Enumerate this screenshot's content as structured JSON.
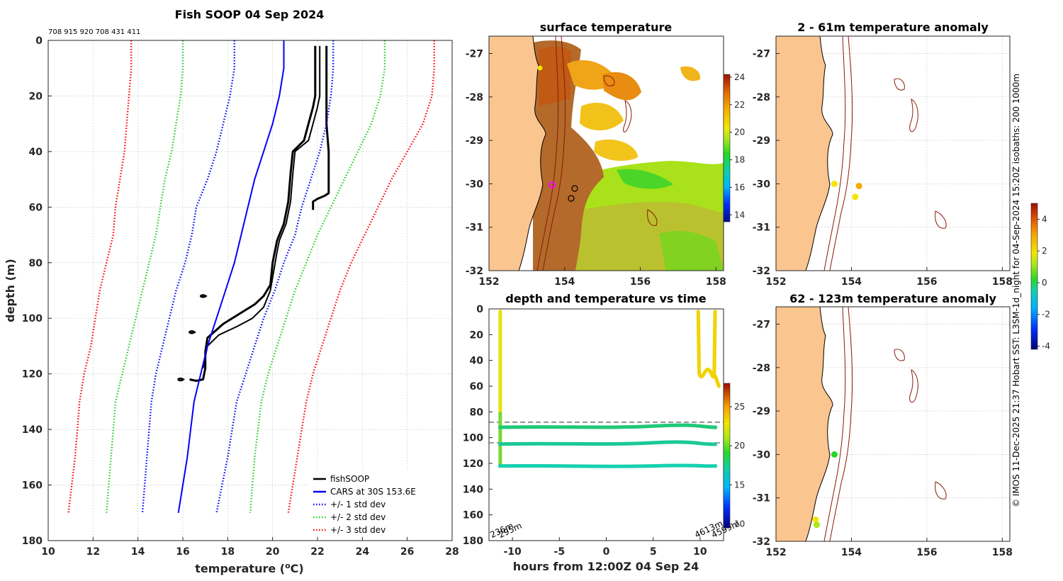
{
  "figure": {
    "side_credit": "© IMOS 11-Dec-2025 21:37 Hobart SST: L3SM-1d_night for 04-Sep-2024 15:20Z isobaths: 200  1000m"
  },
  "chart_data": [
    {
      "id": "profile",
      "type": "line",
      "title": "Fish SOOP 04 Sep 2024",
      "subtitle": "708 915 920 708 431 411",
      "xlabel": "temperature (",
      "xlabel_sup": "o",
      "xlabel_end": "C)",
      "ylabel": "depth (m)",
      "xlim": [
        10,
        28
      ],
      "ylim": [
        0,
        180
      ],
      "yreversed": true,
      "xticks": [
        10,
        12,
        14,
        16,
        18,
        20,
        22,
        24,
        26,
        28
      ],
      "yticks": [
        0,
        20,
        40,
        60,
        80,
        100,
        120,
        140,
        160,
        180
      ],
      "legend_position": "bottom-right",
      "series": [
        {
          "name": "fishSOOP",
          "color": "#000000",
          "style": "solid",
          "width": 3,
          "x": [
            21.9,
            21.9,
            21.8,
            21.6,
            21.4,
            20.9,
            20.8,
            20.7,
            20.5,
            20.2,
            20.1,
            20.0,
            19.9,
            19.6,
            19.2,
            18.6,
            17.8,
            17.1,
            17.0,
            17.0,
            16.9,
            16.6,
            16.3
          ],
          "y": [
            2,
            20,
            24,
            30,
            36,
            40,
            48,
            58,
            66,
            72,
            76,
            80,
            88,
            92,
            95,
            98,
            102,
            107,
            112,
            118,
            122,
            122.5,
            122
          ]
        },
        {
          "name": "fishSOOP",
          "color": "#000000",
          "style": "solid",
          "width": 2,
          "x": [
            22.1,
            22.1,
            22.0,
            21.8,
            21.6,
            21.0,
            20.9,
            20.8,
            20.6,
            20.3,
            20.2,
            19.9,
            19.6,
            19.1,
            18.4,
            17.6,
            17.1,
            16.9
          ],
          "y": [
            2,
            20,
            24,
            30,
            36,
            40,
            48,
            58,
            66,
            72,
            76,
            90,
            96,
            100,
            103,
            106,
            110,
            118
          ]
        },
        {
          "name": "fishSOOP",
          "color": "#000000",
          "style": "solid",
          "width": 3,
          "x": [
            22.4,
            22.4,
            22.4,
            22.5,
            22.5,
            22.5,
            22.3,
            22.0,
            21.8,
            21.8
          ],
          "y": [
            2,
            20,
            30,
            40,
            50,
            55,
            56,
            57,
            58,
            61
          ]
        },
        {
          "name": "CARS at 30S 153.6E",
          "color": "#0000ff",
          "style": "solid",
          "width": 2,
          "x": [
            20.5,
            20.5,
            20.3,
            20.0,
            19.6,
            19.2,
            18.9,
            18.6,
            18.3,
            17.9,
            17.5,
            17.1,
            16.8,
            16.5,
            16.2,
            15.8
          ],
          "y": [
            0,
            10,
            20,
            30,
            40,
            50,
            60,
            70,
            80,
            90,
            100,
            110,
            120,
            130,
            150,
            170
          ]
        },
        {
          "name": "+/- 1 std dev",
          "color": "#0000ff",
          "style": "dotted",
          "width": 2,
          "x": [
            22.7,
            22.7,
            22.6,
            22.4,
            22.1,
            21.7,
            21.3,
            21.0,
            20.5,
            20.1,
            19.6,
            19.2,
            18.8,
            18.4,
            18.0,
            17.5
          ],
          "y": [
            0,
            10,
            20,
            30,
            40,
            50,
            60,
            70,
            80,
            90,
            100,
            110,
            120,
            130,
            150,
            170
          ]
        },
        {
          "name": "+/- 1 std dev",
          "color": "#0000ff",
          "style": "dotted",
          "width": 2,
          "x": [
            18.3,
            18.3,
            18.1,
            17.8,
            17.5,
            17.1,
            16.6,
            16.4,
            16.1,
            15.7,
            15.4,
            15.1,
            14.8,
            14.6,
            14.4,
            14.2
          ],
          "y": [
            0,
            10,
            20,
            30,
            40,
            50,
            60,
            70,
            80,
            90,
            100,
            110,
            120,
            130,
            150,
            170
          ]
        },
        {
          "name": "+/- 2 std dev",
          "color": "#22cc22",
          "style": "dotted",
          "width": 2,
          "x": [
            25.0,
            25.0,
            24.8,
            24.4,
            23.8,
            23.2,
            22.6,
            22.0,
            21.5,
            21.0,
            20.6,
            20.2,
            19.8,
            19.5,
            19.2,
            19.0
          ],
          "y": [
            0,
            10,
            20,
            30,
            40,
            50,
            60,
            70,
            80,
            90,
            100,
            110,
            120,
            130,
            150,
            170
          ]
        },
        {
          "name": "+/- 2 std dev",
          "color": "#22cc22",
          "style": "dotted",
          "width": 2,
          "x": [
            16.0,
            16.0,
            15.9,
            15.7,
            15.5,
            15.2,
            15.0,
            14.8,
            14.5,
            14.2,
            13.9,
            13.6,
            13.3,
            13.0,
            12.8,
            12.6
          ],
          "y": [
            0,
            10,
            20,
            30,
            40,
            50,
            60,
            70,
            80,
            90,
            100,
            110,
            120,
            130,
            150,
            170
          ]
        },
        {
          "name": "+/- 3 std dev",
          "color": "#ff0000",
          "style": "dotted",
          "width": 2,
          "x": [
            27.2,
            27.2,
            27.1,
            26.7,
            26.0,
            25.3,
            24.7,
            24.1,
            23.5,
            23.0,
            22.6,
            22.2,
            21.8,
            21.5,
            21.1,
            20.7
          ],
          "y": [
            0,
            10,
            20,
            30,
            40,
            50,
            60,
            70,
            80,
            90,
            100,
            110,
            120,
            130,
            150,
            170
          ]
        },
        {
          "name": "+/- 3 std dev",
          "color": "#ff0000",
          "style": "dotted",
          "width": 2,
          "x": [
            13.7,
            13.7,
            13.6,
            13.5,
            13.4,
            13.2,
            13.0,
            12.9,
            12.6,
            12.3,
            12.1,
            11.9,
            11.6,
            11.4,
            11.2,
            10.9
          ],
          "y": [
            0,
            10,
            20,
            30,
            40,
            50,
            60,
            70,
            80,
            90,
            100,
            110,
            120,
            130,
            150,
            170
          ]
        }
      ],
      "legend": [
        {
          "label": "fishSOOP",
          "color": "#000000",
          "style": "solid"
        },
        {
          "label": "CARS at 30S 153.6E",
          "color": "#0000ff",
          "style": "solid"
        },
        {
          "label": "+/- 1 std dev",
          "color": "#0000ff",
          "style": "dotted"
        },
        {
          "label": "+/- 2 std dev",
          "color": "#22cc22",
          "style": "dotted"
        },
        {
          "label": "+/- 3 std dev",
          "color": "#ff0000",
          "style": "dotted"
        }
      ]
    },
    {
      "id": "sst_map",
      "type": "heatmap",
      "title": "surface temperature",
      "xlim": [
        152,
        158.2
      ],
      "ylim": [
        -32,
        -26.6
      ],
      "xticks": [
        152,
        154,
        156,
        158
      ],
      "yticks": [
        -27,
        -28,
        -29,
        -30,
        -31,
        -32
      ],
      "colorbar": {
        "min": 13.5,
        "max": 24.2,
        "ticks": [
          14,
          16,
          18,
          20,
          22,
          24
        ]
      },
      "markers": [
        {
          "lon": 153.6,
          "lat": -30.0,
          "type": "magenta-circle"
        },
        {
          "lon": 154.2,
          "lat": -30.05,
          "type": "black-circle"
        },
        {
          "lon": 154.05,
          "lat": -30.3,
          "type": "black-circle"
        }
      ]
    },
    {
      "id": "anomaly_shallow",
      "type": "scatter",
      "title": "2 - 61m temperature anomaly",
      "xlim": [
        152,
        158.2
      ],
      "ylim": [
        -32,
        -26.6
      ],
      "xticks": [
        152,
        154,
        156,
        158
      ],
      "yticks": [
        -27,
        -28,
        -29,
        -30,
        -31,
        -32
      ],
      "points": [
        {
          "lon": 153.55,
          "lat": -30.0,
          "anomaly": 2.1
        },
        {
          "lon": 154.2,
          "lat": -30.05,
          "anomaly": 2.3
        },
        {
          "lon": 154.1,
          "lat": -30.3,
          "anomaly": 2.0
        }
      ]
    },
    {
      "id": "anomaly_deep",
      "type": "scatter",
      "title": "62 - 123m temperature anomaly",
      "xlim": [
        152,
        158.2
      ],
      "ylim": [
        -32,
        -26.6
      ],
      "xticks": [
        152,
        154,
        156,
        158
      ],
      "yticks": [
        -27,
        -28,
        -29,
        -30,
        -31,
        -32
      ],
      "colorbar": {
        "min": -4.2,
        "max": 5.0,
        "ticks": [
          4,
          2,
          0,
          -2,
          -4
        ]
      },
      "points": [
        {
          "lon": 153.55,
          "lat": -30.0,
          "anomaly": -0.3
        },
        {
          "lon": 153.05,
          "lat": -31.5,
          "anomaly": 2.0
        },
        {
          "lon": 153.08,
          "lat": -31.62,
          "anomaly": 1.6
        }
      ]
    },
    {
      "id": "depth_time",
      "type": "scatter",
      "title": "depth and temperature vs time",
      "xlabel": "hours from 12:00Z 04 Sep 24",
      "xlim": [
        -12.5,
        12.5
      ],
      "ylim": [
        0,
        180
      ],
      "yreversed": true,
      "xticks": [
        -10,
        -5,
        0,
        5,
        10
      ],
      "yticks": [
        0,
        20,
        40,
        60,
        80,
        100,
        120,
        140,
        160,
        180
      ],
      "reference_depths": [
        88,
        104
      ],
      "colorbar": {
        "min": 9.5,
        "max": 28,
        "ticks": [
          10,
          15,
          20,
          25
        ]
      },
      "annotations": [
        {
          "text": "236m",
          "x": -12.2,
          "y": 178
        },
        {
          "text": "295m",
          "x": -11.3,
          "y": 178
        },
        {
          "text": "4613m",
          "x": 9.6,
          "y": 178
        },
        {
          "text": "4599m",
          "x": 11.4,
          "y": 178
        }
      ]
    }
  ]
}
